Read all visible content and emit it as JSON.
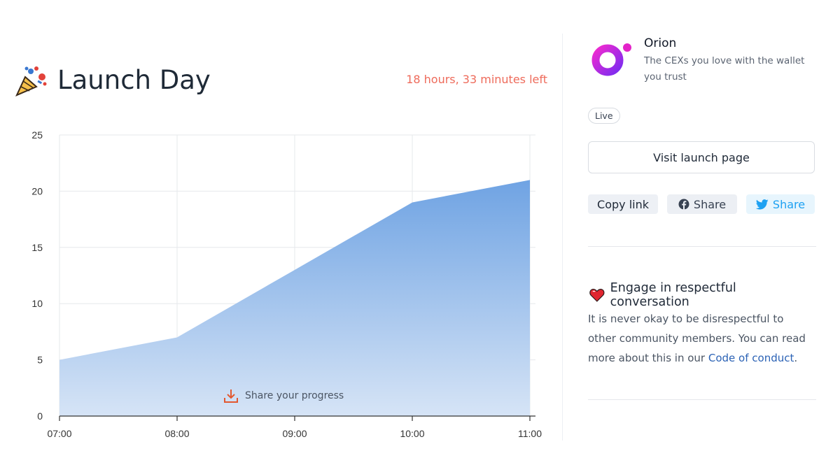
{
  "header": {
    "title": "Launch Day",
    "time_left": "18 hours, 33 minutes left",
    "title_icon": "party-popper-icon"
  },
  "chart_data": {
    "type": "area",
    "x": [
      "07:00",
      "08:00",
      "09:00",
      "10:00",
      "11:00"
    ],
    "series": [
      {
        "values": [
          5,
          7,
          13,
          19,
          21
        ]
      }
    ],
    "y_ticks": [
      "0",
      "5",
      "10",
      "15",
      "20",
      "25"
    ],
    "ylim": [
      0,
      25
    ],
    "grid": true,
    "fill_color_top": "#6fa3e3",
    "fill_color_bottom": "#d6e4f6"
  },
  "share_progress": {
    "label": "Share your progress",
    "icon": "download-icon"
  },
  "project": {
    "name": "Orion",
    "description": "The CEXs you love with the wallet you trust",
    "status": "Live",
    "visit_label": "Visit launch page",
    "logo_colors": [
      "#e023d6",
      "#7a2cf0"
    ]
  },
  "share": {
    "copy_label": "Copy link",
    "facebook_label": "Share",
    "twitter_label": "Share",
    "twitter_color": "#1da1f2"
  },
  "conduct": {
    "title": "Engage in respectful conversation",
    "text": "It is never okay to be disrespectful to other community members. You can read more about this in our ",
    "link_label": "Code of conduct",
    "suffix": ".",
    "icon": "heart-icon"
  }
}
